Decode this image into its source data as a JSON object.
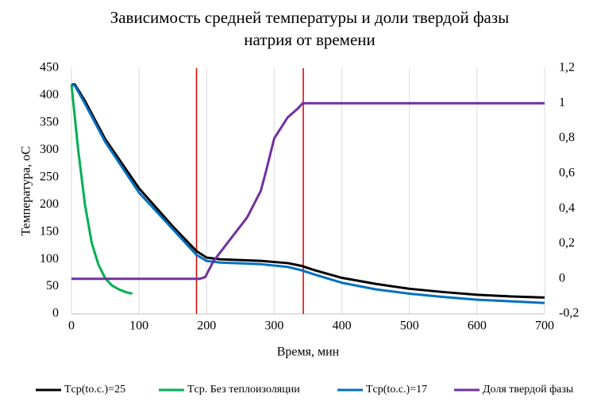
{
  "chart_data": {
    "type": "line",
    "title": [
      "Зависимость средней температуры и доли твердой фазы",
      "натрия от времени"
    ],
    "x_label": "Время, мин",
    "y_label": "Температура, оС",
    "xlim": [
      0,
      700
    ],
    "xticks": [
      0,
      100,
      200,
      300,
      400,
      500,
      600,
      700
    ],
    "ylim": [
      0,
      450
    ],
    "yticks": [
      0,
      50,
      100,
      150,
      200,
      250,
      300,
      350,
      400,
      450
    ],
    "y2lim": [
      -0.2,
      1.2
    ],
    "y2ticks": [
      {
        "value": -0.2,
        "label": "-0,2"
      },
      0,
      {
        "value": 0.2,
        "label": "0,2"
      },
      {
        "value": 0.4,
        "label": "0,4"
      },
      {
        "value": 0.6,
        "label": "0,6"
      },
      {
        "value": 0.8,
        "label": "0,8"
      },
      1,
      {
        "value": 1.2,
        "label": "1,2"
      }
    ],
    "grid": true,
    "vlines": {
      "color": "#d00000",
      "x": [
        185,
        343
      ]
    },
    "series": [
      {
        "name": "Tср(tо.с.)=25",
        "color": "#000000",
        "x": [
          0,
          5,
          20,
          50,
          100,
          150,
          185,
          200,
          220,
          280,
          320,
          340,
          360,
          400,
          450,
          500,
          550,
          600,
          650,
          700
        ],
        "values": [
          420,
          420,
          390,
          320,
          230,
          160,
          115,
          103,
          100,
          97,
          93,
          88,
          80,
          66,
          55,
          46,
          40,
          35,
          32,
          30
        ]
      },
      {
        "name": "Tср. Без теплоизоляции",
        "color": "#00b050",
        "x": [
          0,
          10,
          20,
          30,
          40,
          50,
          60,
          70,
          80,
          90
        ],
        "values": [
          420,
          300,
          200,
          130,
          90,
          65,
          52,
          45,
          40,
          37
        ]
      },
      {
        "name": "Tср(tо.с.)=17",
        "color": "#0070c0",
        "x": [
          0,
          5,
          20,
          50,
          100,
          150,
          185,
          200,
          220,
          280,
          320,
          340,
          360,
          400,
          450,
          500,
          550,
          600,
          650,
          700
        ],
        "values": [
          420,
          418,
          385,
          315,
          222,
          155,
          108,
          97,
          94,
          91,
          86,
          80,
          72,
          57,
          45,
          37,
          31,
          26,
          23,
          20
        ]
      },
      {
        "name": "Доля твердой фазы",
        "color": "#7030a0",
        "axis": "y2",
        "x": [
          0,
          190,
          198,
          210,
          230,
          260,
          280,
          287,
          300,
          320,
          335,
          342,
          700
        ],
        "values": [
          0,
          0,
          0.01,
          0.1,
          0.2,
          0.35,
          0.5,
          0.6,
          0.8,
          0.92,
          0.97,
          1,
          1
        ]
      }
    ]
  }
}
